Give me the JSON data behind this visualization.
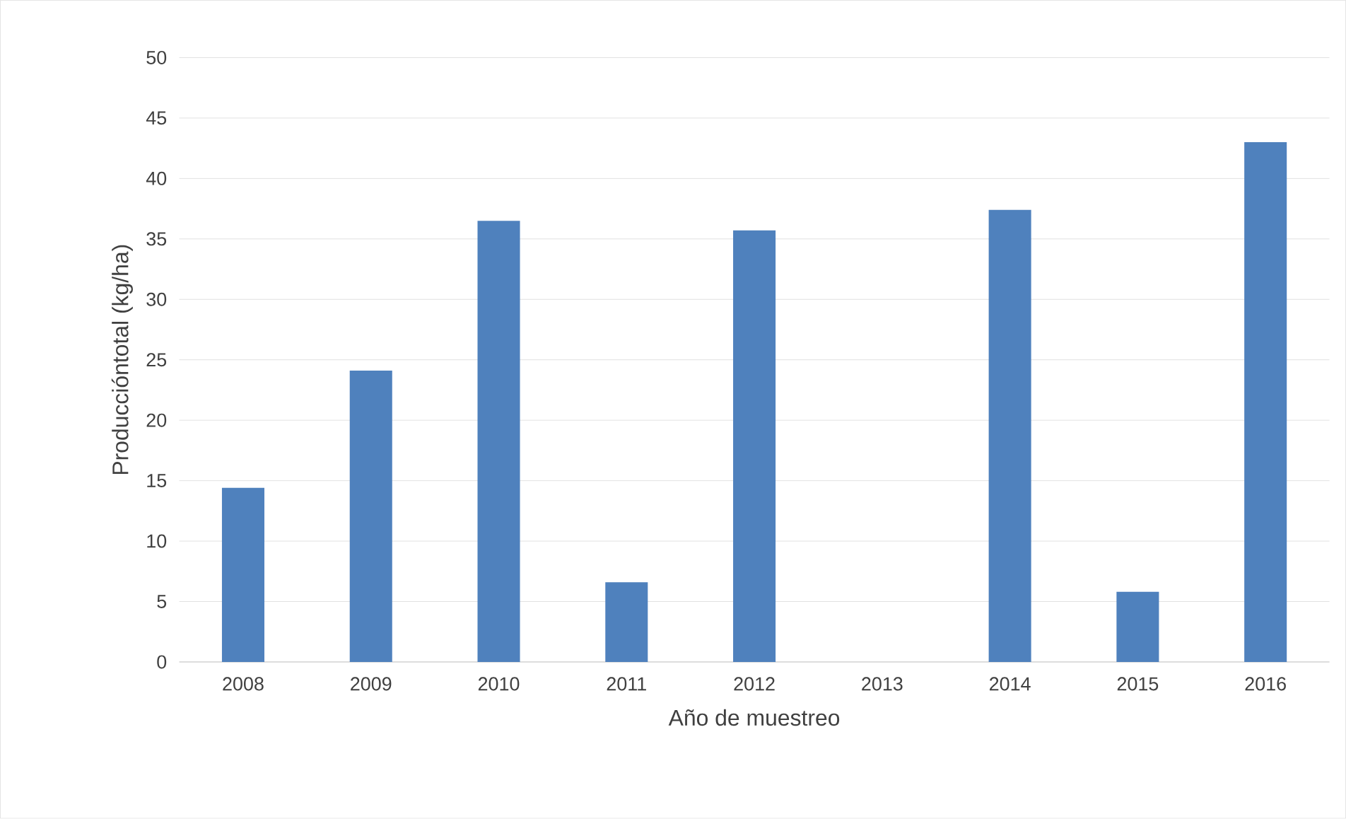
{
  "chart_data": {
    "type": "bar",
    "xlabel": "Año de muestreo",
    "ylabel": "Produccióntotal (kg/ha)",
    "categories": [
      "2008",
      "2009",
      "2010",
      "2011",
      "2012",
      "2013",
      "2014",
      "2015",
      "2016"
    ],
    "values": [
      14.4,
      24.1,
      36.5,
      6.6,
      35.7,
      0,
      37.4,
      5.8,
      43
    ],
    "color": "#4f81bd",
    "ylim": [
      0,
      50
    ],
    "yticks": [
      0,
      5,
      10,
      15,
      20,
      25,
      30,
      35,
      40,
      45,
      50
    ],
    "grid": "y"
  }
}
